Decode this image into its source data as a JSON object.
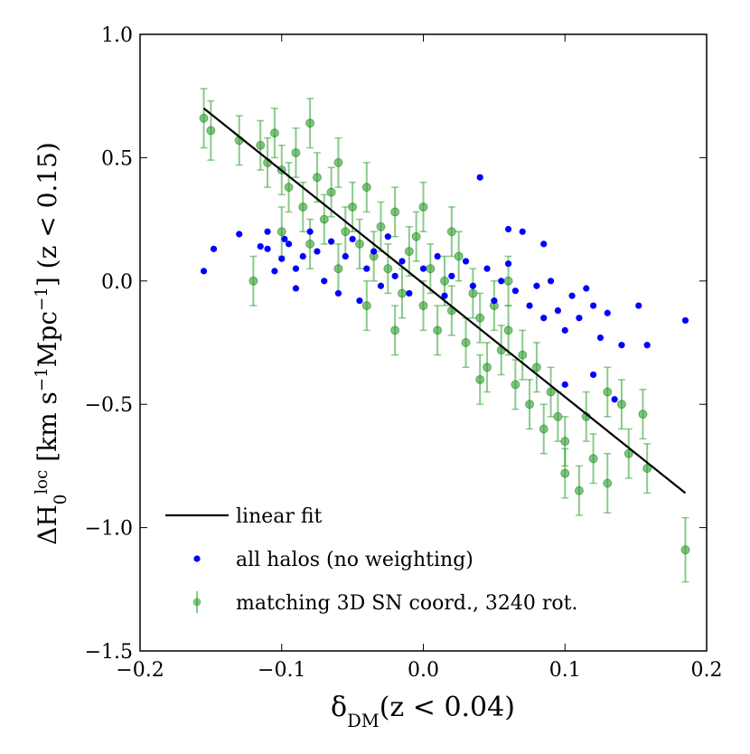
{
  "chart_data": {
    "type": "scatter",
    "xlabel": [
      {
        "text": "δ"
      },
      {
        "text": "DM",
        "shift": "sub"
      },
      {
        "text": "(z < 0.04)"
      }
    ],
    "ylabel": [
      {
        "text": "ΔH"
      },
      {
        "text": "0",
        "shift": "sub"
      },
      {
        "text": "loc",
        "shift": "sup"
      },
      {
        "text": " [km s"
      },
      {
        "text": "−1",
        "shift": "sup"
      },
      {
        "text": "Mpc"
      },
      {
        "text": "−1",
        "shift": "sup"
      },
      {
        "text": "] (z < 0.15)"
      }
    ],
    "xlim": [
      -0.2,
      0.2
    ],
    "ylim": [
      -1.5,
      1.0
    ],
    "xticks": [
      {
        "value": -0.2,
        "label": "−0.2"
      },
      {
        "value": -0.1,
        "label": "−0.1"
      },
      {
        "value": 0,
        "label": "0.0"
      },
      {
        "value": 0.1,
        "label": "0.1"
      },
      {
        "value": 0.2,
        "label": "0.2"
      }
    ],
    "yticks": [
      {
        "value": -1.5,
        "label": "−1.5"
      },
      {
        "value": -1.0,
        "label": "−1.0"
      },
      {
        "value": -0.5,
        "label": "−0.5"
      },
      {
        "value": 0,
        "label": "0.0"
      },
      {
        "value": 0.5,
        "label": "0.5"
      },
      {
        "value": 1.0,
        "label": "1.0"
      }
    ],
    "legend": "lower left",
    "series": [
      {
        "name": "linear fit",
        "type": "line",
        "color": "#000000",
        "x": [
          -0.155,
          0.185
        ],
        "values": [
          0.7,
          -0.86
        ]
      },
      {
        "name": "all halos (no weighting)",
        "type": "scatter",
        "color": "#0000ff",
        "x": [
          -0.155,
          -0.148,
          -0.13,
          -0.115,
          -0.11,
          -0.105,
          -0.1,
          -0.098,
          -0.095,
          -0.09,
          -0.085,
          -0.08,
          -0.075,
          -0.07,
          -0.065,
          -0.06,
          -0.055,
          -0.05,
          -0.045,
          -0.04,
          -0.035,
          -0.03,
          -0.025,
          -0.02,
          -0.015,
          -0.01,
          0,
          0.01,
          0.015,
          0.02,
          0.03,
          0.035,
          0.04,
          0.045,
          0.05,
          0.055,
          0.06,
          0.065,
          0.07,
          0.075,
          0.08,
          0.085,
          0.09,
          0.095,
          0.1,
          0.105,
          0.11,
          0.115,
          0.12,
          0.125,
          0.13,
          0.135,
          0.14,
          0.152,
          0.158,
          0.185,
          0.12,
          0.1,
          -0.11,
          -0.09,
          0.06,
          0.085
        ],
        "values": [
          0.04,
          0.13,
          0.19,
          0.14,
          0.2,
          0.04,
          0.09,
          0.17,
          0.15,
          -0.03,
          0.1,
          0.2,
          0.12,
          0.0,
          0.16,
          -0.05,
          0.1,
          0.17,
          -0.08,
          0.05,
          0.12,
          -0.02,
          0.18,
          0.02,
          0.08,
          -0.05,
          0.05,
          0.1,
          -0.06,
          0.02,
          0.08,
          -0.02,
          0.42,
          0.05,
          -0.08,
          0.0,
          0.07,
          -0.04,
          0.2,
          -0.1,
          -0.02,
          -0.15,
          0.0,
          -0.12,
          -0.2,
          -0.06,
          -0.15,
          -0.03,
          -0.1,
          -0.23,
          -0.13,
          -0.48,
          -0.26,
          -0.1,
          -0.26,
          -0.16,
          -0.38,
          -0.42,
          0.13,
          0.05,
          0.21,
          0.15
        ]
      },
      {
        "name": "matching 3D SN coord., 3240 rot.",
        "type": "errorbar",
        "color": "#2ca02c",
        "x": [
          -0.155,
          -0.15,
          -0.13,
          -0.115,
          -0.11,
          -0.105,
          -0.1,
          -0.095,
          -0.09,
          -0.085,
          -0.08,
          -0.075,
          -0.07,
          -0.065,
          -0.06,
          -0.055,
          -0.05,
          -0.045,
          -0.04,
          -0.035,
          -0.03,
          -0.025,
          -0.02,
          -0.015,
          -0.01,
          -0.005,
          0,
          0.005,
          0.01,
          0.015,
          0.02,
          0.025,
          0.03,
          0.035,
          0.04,
          0.045,
          0.05,
          0.055,
          0.06,
          0.065,
          0.07,
          0.075,
          0.08,
          0.085,
          0.09,
          0.095,
          0.1,
          0.1,
          0.11,
          0.115,
          0.12,
          0.13,
          0.13,
          0.14,
          0.145,
          0.155,
          0.158,
          0.185,
          -0.12,
          -0.1,
          -0.06,
          -0.04,
          0.0,
          0.02,
          0.06,
          -0.08,
          0.04,
          -0.02
        ],
        "values": [
          0.66,
          0.61,
          0.57,
          0.55,
          0.48,
          0.6,
          0.45,
          0.38,
          0.52,
          0.3,
          0.64,
          0.42,
          0.25,
          0.36,
          0.48,
          0.2,
          0.3,
          0.15,
          0.38,
          0.1,
          0.22,
          0.05,
          0.28,
          -0.05,
          0.12,
          0.18,
          -0.1,
          0.05,
          -0.2,
          0.0,
          -0.12,
          0.1,
          -0.25,
          -0.05,
          -0.15,
          -0.35,
          -0.1,
          -0.28,
          -0.2,
          -0.42,
          -0.3,
          -0.5,
          -0.35,
          -0.6,
          -0.45,
          -0.55,
          -0.78,
          -0.65,
          -0.85,
          -0.55,
          -0.72,
          -0.82,
          -0.45,
          -0.5,
          -0.7,
          -0.54,
          -0.76,
          -1.09,
          0.0,
          0.2,
          0.05,
          -0.1,
          0.3,
          0.2,
          0.0,
          0.15,
          -0.4,
          -0.2
        ],
        "errors": [
          0.12,
          0.12,
          0.1,
          0.1,
          0.1,
          0.1,
          0.1,
          0.1,
          0.1,
          0.1,
          0.1,
          0.1,
          0.1,
          0.1,
          0.1,
          0.1,
          0.1,
          0.1,
          0.1,
          0.1,
          0.1,
          0.1,
          0.1,
          0.1,
          0.1,
          0.1,
          0.1,
          0.1,
          0.1,
          0.1,
          0.1,
          0.1,
          0.1,
          0.1,
          0.1,
          0.1,
          0.1,
          0.1,
          0.1,
          0.1,
          0.1,
          0.1,
          0.1,
          0.1,
          0.1,
          0.1,
          0.1,
          0.1,
          0.1,
          0.1,
          0.1,
          0.12,
          0.1,
          0.1,
          0.1,
          0.1,
          0.1,
          0.13,
          0.1,
          0.1,
          0.1,
          0.1,
          0.1,
          0.1,
          0.1,
          0.1,
          0.1,
          0.1
        ]
      }
    ]
  }
}
